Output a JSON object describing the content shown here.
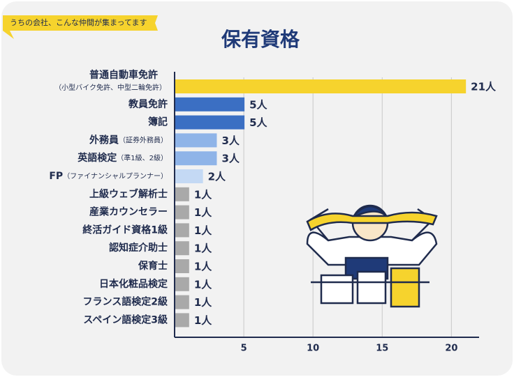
{
  "tag": "うちの会社、こんな仲間が集まってます",
  "chart_data": {
    "type": "hbar",
    "title": "保有資格",
    "categories": [
      "普通自動車免許",
      "教員免許",
      "簿記",
      "外務員",
      "英語検定",
      "FP",
      "上級ウェブ解析士",
      "産業カウンセラー",
      "終活ガイド資格1級",
      "認知症介助士",
      "保育士",
      "日本化粧品検定",
      "フランス語検定2級",
      "スペイン語検定3級"
    ],
    "category_notes": [
      "（小型バイク免許、中型二輪免許）",
      null,
      null,
      "（証券外務員）",
      "（準1級、2級）",
      "（ファイナンシャルプランナー）",
      null,
      null,
      null,
      null,
      null,
      null,
      null,
      null
    ],
    "values": [
      21,
      5,
      5,
      3,
      3,
      2,
      1,
      1,
      1,
      1,
      1,
      1,
      1,
      1
    ],
    "value_labels": [
      "21人",
      "5人",
      "5人",
      "3人",
      "3人",
      "2人",
      "1人",
      "1人",
      "1人",
      "1人",
      "1人",
      "1人",
      "1人",
      "1人"
    ],
    "colors": [
      "#f6d32d",
      "#3b6fc3",
      "#3b6fc3",
      "#8fb4e8",
      "#8fb4e8",
      "#c4d9f4",
      "#a9a9a9",
      "#a9a9a9",
      "#a9a9a9",
      "#a9a9a9",
      "#a9a9a9",
      "#a9a9a9",
      "#a9a9a9",
      "#a9a9a9"
    ],
    "xlim": [
      0,
      22
    ],
    "xticks": [
      5,
      10,
      15,
      20
    ],
    "grid": true
  }
}
